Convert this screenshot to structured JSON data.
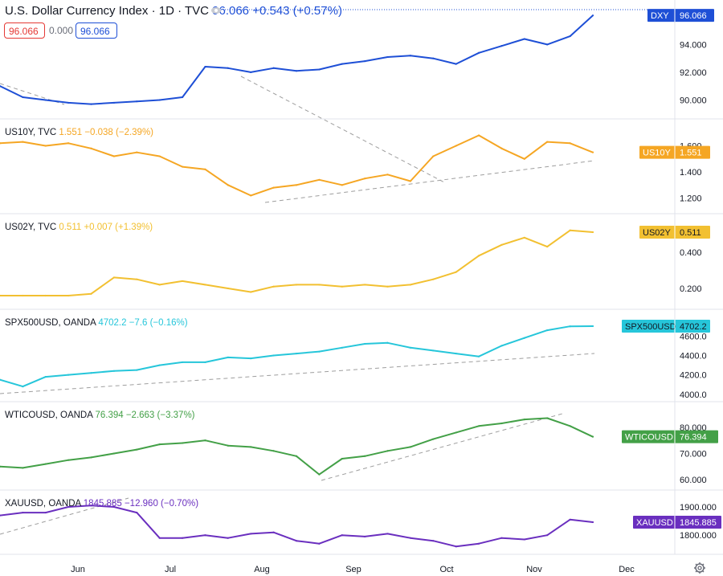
{
  "header": {
    "symbol_title": "U.S. Dollar Currency Index · 1D · TVC",
    "last": "96.066",
    "change": "+0.543 (+0.57%)",
    "ohlc_open": "96.066",
    "ohlc_mid": "0.000",
    "ohlc_close": "96.066"
  },
  "time_axis": {
    "labels": [
      "Jun",
      "Jul",
      "Aug",
      "Sep",
      "Oct",
      "Nov",
      "Dec"
    ]
  },
  "colors": {
    "dxy": "#1e4fd6",
    "us10y": "#f5a623",
    "us02y": "#f2c031",
    "spx": "#26c6da",
    "wti": "#43a047",
    "xau": "#6a2fbf",
    "trend": "#9e9e9e"
  },
  "icons": {
    "settings": "gear-icon",
    "visibility": "eye-icon"
  },
  "chart_data": [
    {
      "type": "line",
      "name": "DXY",
      "legend": "U.S. Dollar Currency Index · 1D · TVC",
      "value_text": "96.066",
      "change_text": "+0.543 (+0.57%)",
      "tag": "DXY",
      "tag_value": "96.066",
      "ticks": [
        "94.000",
        "92.000",
        "90.000"
      ],
      "tick_values": [
        94,
        92,
        90
      ],
      "ylim": [
        89.1,
        96.4
      ],
      "x": [
        0,
        5,
        10,
        15,
        20,
        25,
        30,
        35,
        40,
        45,
        50,
        55,
        60,
        65,
        70,
        75,
        80,
        85,
        90,
        95,
        100,
        105,
        110,
        115,
        120,
        125,
        130
      ],
      "values": [
        91.0,
        90.2,
        90.0,
        89.8,
        89.7,
        89.8,
        89.9,
        90.0,
        90.2,
        92.4,
        92.3,
        92.0,
        92.3,
        92.1,
        92.2,
        92.6,
        92.8,
        93.1,
        93.2,
        93.0,
        92.6,
        93.4,
        93.9,
        94.4,
        94.0,
        94.6,
        96.1
      ]
    },
    {
      "type": "line",
      "name": "US10Y",
      "legend": "US10Y, TVC",
      "value_text": "1.551",
      "change_text": "−0.038 (−2.39%)",
      "tag": "US10Y",
      "tag_value": "1.551",
      "ticks": [
        "1.600",
        "1.400",
        "1.200"
      ],
      "tick_values": [
        1.6,
        1.4,
        1.2
      ],
      "ylim": [
        1.13,
        1.72
      ],
      "x": [
        0,
        5,
        10,
        15,
        20,
        25,
        30,
        35,
        40,
        45,
        50,
        55,
        60,
        65,
        70,
        75,
        80,
        85,
        90,
        95,
        100,
        105,
        110,
        115,
        120,
        125,
        130
      ],
      "values": [
        1.62,
        1.63,
        1.6,
        1.62,
        1.58,
        1.52,
        1.55,
        1.52,
        1.44,
        1.42,
        1.3,
        1.22,
        1.28,
        1.3,
        1.34,
        1.3,
        1.35,
        1.38,
        1.33,
        1.52,
        1.6,
        1.68,
        1.58,
        1.5,
        1.63,
        1.62,
        1.55
      ]
    },
    {
      "type": "line",
      "name": "US02Y",
      "legend": "US02Y, TVC",
      "value_text": "0.511",
      "change_text": "+0.007 (+1.39%)",
      "tag": "US02Y",
      "tag_value": "0.511",
      "ticks": [
        "0.400",
        "0.200"
      ],
      "tick_values": [
        0.4,
        0.2
      ],
      "ylim": [
        0.12,
        0.55
      ],
      "x": [
        0,
        5,
        10,
        15,
        20,
        25,
        30,
        35,
        40,
        45,
        50,
        55,
        60,
        65,
        70,
        75,
        80,
        85,
        90,
        95,
        100,
        105,
        110,
        115,
        120,
        125,
        130
      ],
      "values": [
        0.16,
        0.16,
        0.16,
        0.16,
        0.17,
        0.26,
        0.25,
        0.22,
        0.24,
        0.22,
        0.2,
        0.18,
        0.21,
        0.22,
        0.22,
        0.21,
        0.22,
        0.21,
        0.22,
        0.25,
        0.29,
        0.38,
        0.44,
        0.48,
        0.43,
        0.52,
        0.51
      ]
    },
    {
      "type": "line",
      "name": "SPX500USD",
      "legend": "SPX500USD, OANDA",
      "value_text": "4702.2",
      "change_text": "−7.6 (−0.16%)",
      "tag": "SPX500USD",
      "tag_value": "4702.2",
      "ticks": [
        "4600.0",
        "4400.0",
        "4200.0",
        "4000.0"
      ],
      "tick_values": [
        4600,
        4400,
        4200,
        4000
      ],
      "ylim": [
        3990,
        4760
      ],
      "x": [
        0,
        5,
        10,
        15,
        20,
        25,
        30,
        35,
        40,
        45,
        50,
        55,
        60,
        65,
        70,
        75,
        80,
        85,
        90,
        95,
        100,
        105,
        110,
        115,
        120,
        125,
        130
      ],
      "values": [
        4150,
        4080,
        4180,
        4200,
        4220,
        4240,
        4250,
        4300,
        4330,
        4330,
        4380,
        4370,
        4400,
        4420,
        4440,
        4480,
        4520,
        4530,
        4480,
        4450,
        4420,
        4390,
        4500,
        4580,
        4660,
        4700,
        4702
      ]
    },
    {
      "type": "line",
      "name": "WTICOUSD",
      "legend": "WTICOUSD, OANDA",
      "value_text": "76.394",
      "change_text": "−2.663 (−3.37%)",
      "tag": "WTICOUSD",
      "tag_value": "76.394",
      "ticks": [
        "80.000",
        "70.000",
        "60.000"
      ],
      "tick_values": [
        80,
        70,
        60
      ],
      "ylim": [
        58.5,
        85.5
      ],
      "x": [
        0,
        5,
        10,
        15,
        20,
        25,
        30,
        35,
        40,
        45,
        50,
        55,
        60,
        65,
        70,
        75,
        80,
        85,
        90,
        95,
        100,
        105,
        110,
        115,
        120,
        125,
        130
      ],
      "values": [
        65.0,
        64.5,
        66.0,
        67.5,
        68.5,
        70.0,
        71.5,
        73.5,
        74.0,
        75.0,
        73.0,
        72.5,
        71.0,
        69.0,
        62.0,
        68.0,
        69.0,
        71.0,
        72.5,
        75.5,
        78.0,
        80.5,
        81.5,
        83.0,
        83.5,
        80.5,
        76.4
      ]
    },
    {
      "type": "line",
      "name": "XAUUSD",
      "legend": "XAUUSD, OANDA",
      "value_text": "1845.885",
      "change_text": "−12.960 (−0.70%)",
      "tag": "XAUUSD",
      "tag_value": "1845.885",
      "ticks": [
        "1900.000",
        "1800.000"
      ],
      "tick_values": [
        1900,
        1800
      ],
      "ylim": [
        1755,
        1920
      ],
      "x": [
        0,
        5,
        10,
        15,
        20,
        25,
        30,
        35,
        40,
        45,
        50,
        55,
        60,
        65,
        70,
        75,
        80,
        85,
        90,
        95,
        100,
        105,
        110,
        115,
        120,
        125,
        130
      ],
      "values": [
        1870,
        1880,
        1880,
        1900,
        1905,
        1900,
        1880,
        1790,
        1790,
        1800,
        1790,
        1805,
        1810,
        1780,
        1770,
        1800,
        1795,
        1805,
        1790,
        1780,
        1760,
        1770,
        1790,
        1785,
        1800,
        1855,
        1846
      ]
    }
  ]
}
